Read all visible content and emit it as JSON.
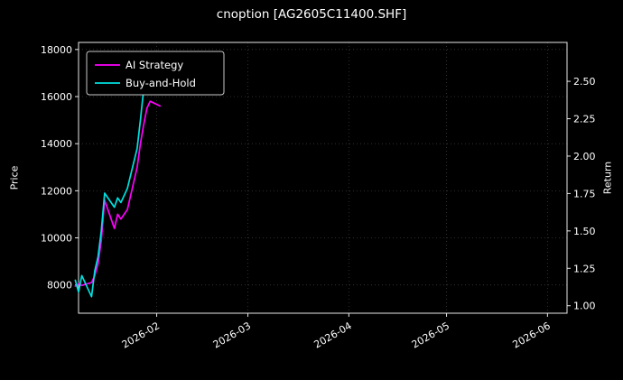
{
  "chart_data": {
    "type": "line",
    "title": "cnoption [AG2605C11400.SHF]",
    "background": "#000000",
    "text_color": "#ffffff",
    "grid": true,
    "legend_position": "upper left",
    "x_range": [
      "2026-01-08",
      "2026-06-07"
    ],
    "x_ticks": [
      {
        "date": "2026-02-01",
        "label": "2026-02"
      },
      {
        "date": "2026-03-01",
        "label": "2026-03"
      },
      {
        "date": "2026-04-01",
        "label": "2026-04"
      },
      {
        "date": "2026-05-01",
        "label": "2026-05"
      },
      {
        "date": "2026-06-01",
        "label": "2026-06"
      }
    ],
    "left_axis": {
      "label": "Price",
      "lim": [
        6800,
        18300
      ],
      "ticks": [
        8000,
        10000,
        12000,
        14000,
        16000,
        18000
      ]
    },
    "right_axis": {
      "label": "Return",
      "lim": [
        0.95,
        2.76
      ],
      "ticks": [
        1.0,
        1.25,
        1.5,
        1.75,
        2.0,
        2.25,
        2.5
      ]
    },
    "series": [
      {
        "name": "AI Strategy",
        "color": "#ff00ff",
        "axis": "left",
        "x": [
          "2026-01-07",
          "2026-01-08",
          "2026-01-09",
          "2026-01-12",
          "2026-01-13",
          "2026-01-14",
          "2026-01-15",
          "2026-01-16",
          "2026-01-19",
          "2026-01-20",
          "2026-01-21",
          "2026-01-22",
          "2026-01-23",
          "2026-01-26",
          "2026-01-27",
          "2026-01-28",
          "2026-01-29",
          "2026-01-30",
          "2026-02-02"
        ],
        "values": [
          7950,
          8050,
          7980,
          8100,
          8400,
          8900,
          9900,
          11600,
          10400,
          11000,
          10800,
          11000,
          11200,
          13000,
          14000,
          14800,
          15500,
          15800,
          15600
        ]
      },
      {
        "name": "Buy-and-Hold",
        "color": "#00e0e0",
        "axis": "left",
        "x": [
          "2026-01-07",
          "2026-01-08",
          "2026-01-09",
          "2026-01-12",
          "2026-01-13",
          "2026-01-14",
          "2026-01-15",
          "2026-01-16",
          "2026-01-19",
          "2026-01-20",
          "2026-01-21",
          "2026-01-22",
          "2026-01-23",
          "2026-01-26",
          "2026-01-27",
          "2026-01-28",
          "2026-01-29",
          "2026-01-30"
        ],
        "values": [
          8200,
          7700,
          8400,
          7500,
          8600,
          9200,
          10300,
          11900,
          11300,
          11700,
          11500,
          11800,
          12100,
          13800,
          15000,
          16300,
          17300,
          17700
        ]
      }
    ]
  }
}
